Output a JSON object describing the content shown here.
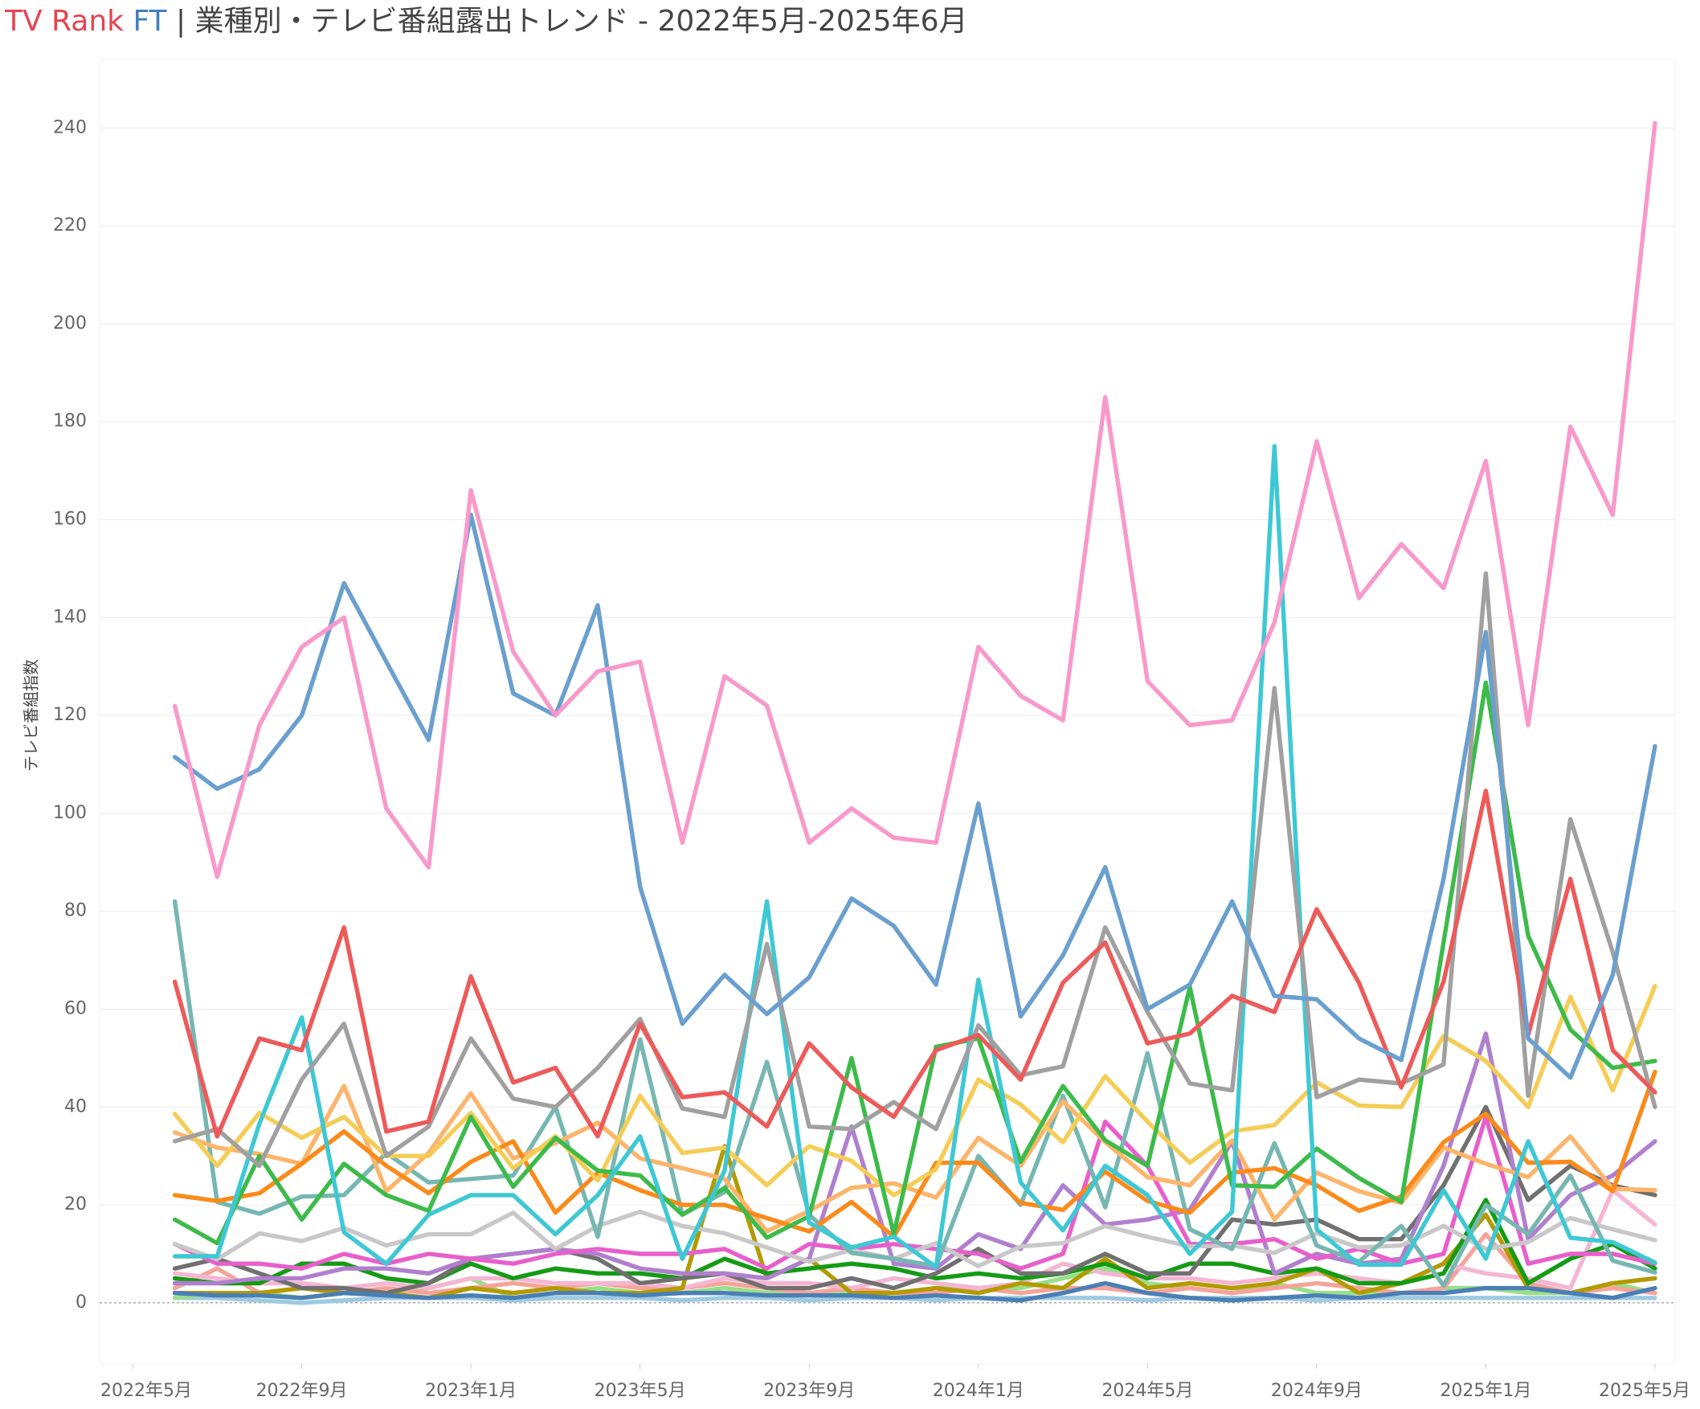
{
  "chart_data": {
    "type": "line",
    "title_brand": "TV Rank",
    "title_brand_suffix": "FT",
    "title": "| 業種別・テレビ番組露出トレンド - 2022年5月-2025年6月",
    "y_label": "テレビ番組指数",
    "x": [
      "2022-06",
      "2022-07",
      "2022-08",
      "2022-09",
      "2022-10",
      "2022-11",
      "2022-12",
      "2023-01",
      "2023-02",
      "2023-03",
      "2023-04",
      "2023-05",
      "2023-06",
      "2023-07",
      "2023-08",
      "2023-09",
      "2023-10",
      "2023-11",
      "2023-12",
      "2024-01",
      "2024-02",
      "2024-03",
      "2024-04",
      "2024-05",
      "2024-06",
      "2024-07",
      "2024-08",
      "2024-09",
      "2024-10",
      "2024-11",
      "2024-12",
      "2025-01",
      "2025-02",
      "2025-03",
      "2025-04",
      "2025-05"
    ],
    "xlim": [
      "2022-05",
      "2025-05"
    ],
    "xticks": [
      {
        "value": "2022-05",
        "label": "2022年5月"
      },
      {
        "value": "2022-09",
        "label": "2022年9月"
      },
      {
        "value": "2023-01",
        "label": "2023年1月"
      },
      {
        "value": "2023-05",
        "label": "2023年5月"
      },
      {
        "value": "2023-09",
        "label": "2023年9月"
      },
      {
        "value": "2024-01",
        "label": "2024年1月"
      },
      {
        "value": "2024-05",
        "label": "2024年5月"
      },
      {
        "value": "2024-09",
        "label": "2024年9月"
      },
      {
        "value": "2025-01",
        "label": "2025年1月"
      },
      {
        "value": "2025-05",
        "label": "2025年5月"
      }
    ],
    "ylim": [
      -12.5,
      254
    ],
    "yticks": [
      0,
      20,
      40,
      60,
      80,
      100,
      120,
      140,
      160,
      180,
      200,
      220,
      240
    ],
    "grid": true,
    "series": [
      {
        "color": "#9ecae1",
        "values": [
          1,
          1,
          0.5,
          0,
          0.5,
          1,
          1,
          1,
          0.5,
          1,
          1,
          1,
          0.5,
          1,
          1,
          0.5,
          1,
          1,
          0.5,
          1,
          1,
          1,
          1,
          0.5,
          1,
          1,
          1,
          0.5,
          1,
          1,
          1,
          1,
          1,
          1,
          1,
          1
        ]
      },
      {
        "color": "#98df8a",
        "values": [
          1,
          2,
          2,
          1,
          2,
          2,
          3,
          5,
          1,
          2,
          3,
          2,
          2,
          3,
          2,
          2,
          2,
          2,
          3,
          3,
          3,
          5,
          7,
          4,
          3,
          2,
          4,
          2,
          2,
          2,
          3,
          3,
          2,
          2,
          4,
          2
        ]
      },
      {
        "color": "#f6a39a",
        "values": [
          3,
          7,
          2,
          3,
          2,
          3,
          2,
          3,
          4,
          3,
          4,
          3,
          3,
          4,
          3,
          2,
          3,
          2,
          2,
          3,
          2,
          3,
          3,
          2,
          3,
          2,
          3,
          4,
          3,
          2,
          3,
          14,
          4,
          2,
          3,
          2
        ]
      },
      {
        "color": "#f4b6d2",
        "values": [
          6,
          5,
          4,
          4,
          3,
          4,
          3,
          5,
          5,
          4,
          4,
          4,
          3,
          5,
          4,
          4,
          3,
          5,
          4,
          3,
          4,
          8,
          6,
          5,
          5,
          4,
          5,
          6,
          5,
          4,
          8,
          6,
          5,
          3,
          23,
          16
        ]
      },
      {
        "color": "#b39a00",
        "values": [
          2,
          2,
          2,
          3,
          2,
          2,
          1,
          3,
          2,
          3,
          2,
          2,
          3,
          32,
          5,
          9,
          2,
          2,
          3,
          2,
          4,
          3,
          9,
          3,
          4,
          3,
          4,
          7,
          2,
          4,
          8,
          18,
          3,
          2,
          4,
          5
        ]
      },
      {
        "color": "#149b14",
        "values": [
          5,
          4,
          4,
          8,
          8,
          5,
          4,
          8,
          5,
          7,
          6,
          6,
          5,
          9,
          6,
          7,
          8,
          7,
          5,
          6,
          5,
          6,
          8,
          5,
          8,
          8,
          6,
          7,
          4,
          4,
          6,
          21,
          4,
          9,
          12,
          7
        ]
      },
      {
        "color": "#707070",
        "values": [
          7,
          9,
          6,
          3,
          3,
          2,
          4,
          9,
          10,
          11,
          9,
          4,
          5,
          6,
          3,
          3,
          5,
          3,
          6,
          11,
          6,
          6,
          10,
          6,
          6,
          17,
          16,
          17,
          13,
          13,
          24,
          40,
          21,
          28,
          24,
          22
        ]
      },
      {
        "color": "#b07fce",
        "values": [
          4,
          4,
          5,
          5,
          7,
          7,
          6,
          9,
          10,
          11,
          10,
          7,
          6,
          6,
          5,
          9,
          36,
          8,
          7,
          14,
          11,
          24,
          16,
          17,
          19,
          33,
          6,
          10,
          8,
          9,
          28,
          55,
          13,
          22,
          26,
          33
        ]
      },
      {
        "color": "#e85fcb",
        "values": [
          12,
          8,
          8,
          7,
          10,
          8,
          10,
          9,
          8,
          10,
          11,
          10,
          10,
          11,
          7,
          12,
          11,
          12,
          11,
          10,
          7,
          10,
          37,
          28,
          12,
          12,
          13,
          9,
          11,
          8,
          10,
          38,
          8,
          10,
          10,
          8
        ]
      },
      {
        "color": "#c8c8c8",
        "values": [
          12,
          8.9,
          14.2,
          12.6,
          15.3,
          11.7,
          14,
          14,
          18.4,
          11,
          15.7,
          18.6,
          15.7,
          14.2,
          11.3,
          8.4,
          10.8,
          9,
          12.2,
          7.5,
          11.5,
          12.2,
          15.7,
          13.5,
          11.5,
          11.7,
          10.2,
          14.2,
          11.3,
          11.7,
          15.7,
          11,
          12.4,
          17.3,
          15,
          12.8
        ]
      },
      {
        "color": "#4a7fb5",
        "values": [
          2,
          1.5,
          1.5,
          1,
          2,
          1.5,
          1,
          1.5,
          1,
          2,
          2,
          1.5,
          2,
          2,
          1.5,
          1.5,
          1.5,
          1,
          1.5,
          1,
          0.5,
          2,
          4,
          2,
          1,
          0.5,
          1,
          1.5,
          1,
          2,
          2,
          3,
          3,
          2,
          1,
          3
        ]
      },
      {
        "color": "#76b7b2",
        "values": [
          82,
          20.6,
          18.2,
          21.7,
          22,
          30.6,
          24.6,
          25.3,
          26,
          40,
          13.5,
          53.8,
          18,
          22.6,
          49.2,
          18,
          10.2,
          9,
          7.5,
          30,
          20,
          42.3,
          19.5,
          51,
          15,
          11,
          32.6,
          11.7,
          8.4,
          15.7,
          3.5,
          20,
          14,
          26,
          8.6,
          6.2
        ]
      },
      {
        "color": "#fdb46b",
        "values": [
          34.8,
          31.7,
          30.4,
          28.4,
          44.3,
          22.8,
          30.6,
          42.8,
          29.5,
          32.6,
          36.8,
          29.5,
          27.5,
          25.3,
          14.6,
          18.8,
          23.5,
          24.4,
          21.5,
          33.7,
          28,
          41.2,
          32.8,
          25.7,
          24,
          33.2,
          17,
          26.6,
          22.8,
          20.4,
          31.7,
          28.4,
          25.7,
          34,
          23.3,
          23
        ]
      },
      {
        "color": "#fb8a1a",
        "values": [
          22,
          20.8,
          22.4,
          28.4,
          35,
          28,
          22.4,
          28.8,
          33,
          18.4,
          26.6,
          23,
          20,
          20,
          17.3,
          14.6,
          20.6,
          13.5,
          28.6,
          28.6,
          20.4,
          19,
          26.8,
          20.8,
          18.4,
          26.6,
          27.5,
          24,
          18.8,
          21.7,
          32.8,
          38.6,
          28.6,
          28.8,
          22.8,
          47.2
        ]
      },
      {
        "color": "#f5cd56",
        "values": [
          38.6,
          28,
          38.8,
          33.7,
          38,
          30,
          30,
          38.8,
          27.5,
          34,
          25,
          42.3,
          30.6,
          31.7,
          24,
          32,
          29,
          22,
          27.3,
          45.6,
          40.5,
          32.8,
          46.3,
          37,
          28.6,
          35,
          36.3,
          45,
          40.3,
          40,
          54.5,
          49.4,
          40,
          62.5,
          43.4,
          64.7
        ]
      },
      {
        "color": "#3dbb4a",
        "values": [
          17,
          12.2,
          30,
          17,
          28.4,
          22,
          18.8,
          38,
          23.7,
          33.7,
          27,
          26,
          18,
          23.5,
          13.3,
          17.7,
          50,
          14,
          52.3,
          54,
          28.8,
          44.3,
          33.2,
          28,
          64.5,
          24,
          23.7,
          31.5,
          25.5,
          20.6,
          73.6,
          126.7,
          75,
          55.8,
          48,
          49.4
        ]
      },
      {
        "color": "#3ec8d4",
        "values": [
          9.5,
          9.5,
          36.6,
          58.3,
          14.4,
          8,
          18,
          22,
          22,
          14,
          22,
          34,
          9,
          27,
          82,
          16.4,
          11.3,
          13.5,
          7.3,
          66,
          24.6,
          14.8,
          28,
          22,
          10,
          18.6,
          175,
          15,
          7.8,
          7.8,
          23,
          9,
          33,
          13.3,
          12.4,
          8.2
        ]
      },
      {
        "color": "#a0a0a0",
        "values": [
          33,
          35.5,
          28,
          45.6,
          57,
          30,
          36,
          54,
          41.7,
          40,
          48,
          58,
          39.7,
          38,
          73.3,
          36,
          35.5,
          41,
          35.5,
          56.7,
          46.5,
          48.3,
          76.7,
          59.4,
          44.8,
          43.4,
          125.6,
          42,
          45.6,
          44.8,
          48.7,
          149,
          42.3,
          98.8,
          71.6,
          40
        ]
      },
      {
        "color": "#ed5a5a",
        "values": [
          65.6,
          34,
          54,
          51.6,
          76.7,
          35,
          37,
          66.7,
          45,
          48,
          34,
          57,
          42,
          43,
          36,
          53,
          44,
          38,
          51.6,
          54.7,
          45.6,
          65.4,
          73.6,
          53,
          55,
          62.7,
          59.4,
          80.4,
          65.4,
          44,
          65.6,
          104.6,
          54.7,
          86.6,
          51.6,
          43
        ]
      },
      {
        "color": "#6a9fcf",
        "values": [
          111.5,
          105,
          109,
          120,
          147,
          131,
          115,
          161,
          124.5,
          120,
          142.5,
          85,
          57,
          67,
          59,
          66.5,
          82.6,
          77,
          65,
          102,
          58.5,
          71,
          89,
          60,
          65,
          82,
          62.7,
          62,
          54,
          49.6,
          86.6,
          137,
          54,
          46,
          67,
          113.7
        ]
      },
      {
        "color": "#f899cb",
        "values": [
          121.9,
          87,
          118,
          134,
          140,
          101,
          89,
          166,
          133,
          120,
          129,
          131,
          94,
          128,
          122,
          94,
          101,
          95,
          94,
          134,
          124,
          119,
          185,
          127,
          118,
          119,
          139,
          176,
          144,
          155,
          146,
          172,
          118,
          179,
          161,
          241
        ]
      }
    ]
  }
}
